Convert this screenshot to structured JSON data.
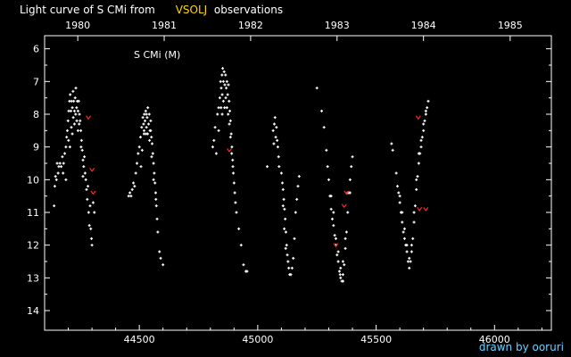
{
  "header": {
    "title_prefix": "Light curve of S CMi from",
    "title_source": "VSOLJ",
    "title_suffix": "observations"
  },
  "credit": "drawn by ooruri",
  "colors": {
    "background": "#000000",
    "axis": "#ffffff",
    "visual": "#ffffff",
    "photo": "#ff2a2a",
    "source": "#ffd700",
    "credit": "#6ad0ff"
  },
  "chart_data": {
    "type": "scatter",
    "title": "Light curve of S CMi from VSOLJ observations",
    "xlabel": "",
    "ylabel": "",
    "annotation": "S CMi (M)",
    "xlim": [
      44100,
      46240
    ],
    "ylim": [
      14.6,
      5.6
    ],
    "y_inverted": true,
    "grid": false,
    "x_ticks": [
      44500,
      45000,
      45500,
      46000
    ],
    "x_tick_labels": [
      "44500",
      "45000",
      "45500",
      "46000"
    ],
    "y_ticks": [
      6,
      7,
      8,
      9,
      10,
      11,
      12,
      13,
      14
    ],
    "y_tick_labels": [
      "6",
      "7",
      "8",
      "9",
      "10",
      "11",
      "12",
      "13",
      "14"
    ],
    "year_ticks": [
      44240,
      44605,
      44970,
      45335,
      45700,
      46066
    ],
    "year_tick_labels": [
      "1980",
      "1981",
      "1982",
      "1983",
      "1984",
      "1985"
    ],
    "series": [
      {
        "marker": "dot",
        "color": "#ffffff",
        "points": [
          [
            44140,
            10.8
          ],
          [
            44143,
            10.2
          ],
          [
            44146,
            9.9
          ],
          [
            44150,
            10.0
          ],
          [
            44153,
            9.5
          ],
          [
            44157,
            9.8
          ],
          [
            44160,
            9.6
          ],
          [
            44165,
            9.5
          ],
          [
            44170,
            9.6
          ],
          [
            44175,
            9.3
          ],
          [
            44180,
            9.5
          ],
          [
            44185,
            9.2
          ],
          [
            44190,
            9.0
          ],
          [
            44193,
            8.7
          ],
          [
            44196,
            8.5
          ],
          [
            44199,
            8.2
          ],
          [
            44202,
            7.9
          ],
          [
            44205,
            7.6
          ],
          [
            44208,
            7.4
          ],
          [
            44211,
            7.9
          ],
          [
            44214,
            7.6
          ],
          [
            44217,
            7.8
          ],
          [
            44220,
            7.3
          ],
          [
            44223,
            7.6
          ],
          [
            44226,
            7.9
          ],
          [
            44229,
            7.5
          ],
          [
            44232,
            7.2
          ],
          [
            44235,
            7.8
          ],
          [
            44238,
            7.6
          ],
          [
            44241,
            7.9
          ],
          [
            44244,
            7.6
          ],
          [
            44247,
            8.0
          ],
          [
            44250,
            8.2
          ],
          [
            44253,
            8.5
          ],
          [
            44256,
            8.8
          ],
          [
            44259,
            9.1
          ],
          [
            44262,
            9.4
          ],
          [
            44265,
            9.6
          ],
          [
            44268,
            9.3
          ],
          [
            44271,
            9.8
          ],
          [
            44274,
            10.0
          ],
          [
            44277,
            10.3
          ],
          [
            44280,
            10.6
          ],
          [
            44283,
            10.2
          ],
          [
            44286,
            11.0
          ],
          [
            44289,
            11.4
          ],
          [
            44292,
            10.8
          ],
          [
            44295,
            11.5
          ],
          [
            44298,
            11.8
          ],
          [
            44300,
            12.0
          ],
          [
            44305,
            10.7
          ],
          [
            44310,
            11.0
          ],
          [
            44213,
            8.4
          ],
          [
            44217,
            8.6
          ],
          [
            44221,
            8.1
          ],
          [
            44226,
            8.3
          ],
          [
            44231,
            8.0
          ],
          [
            44236,
            8.2
          ],
          [
            44241,
            8.5
          ],
          [
            44246,
            8.3
          ],
          [
            44201,
            8.8
          ],
          [
            44207,
            9.0
          ],
          [
            44254,
            9.0
          ],
          [
            44262,
            9.9
          ],
          [
            44190,
            10.0
          ],
          [
            44178,
            9.8
          ],
          [
            44455,
            10.5
          ],
          [
            44460,
            10.4
          ],
          [
            44465,
            10.5
          ],
          [
            44470,
            10.3
          ],
          [
            44475,
            10.1
          ],
          [
            44480,
            10.2
          ],
          [
            44485,
            9.8
          ],
          [
            44490,
            9.5
          ],
          [
            44495,
            9.2
          ],
          [
            44500,
            9.0
          ],
          [
            44505,
            8.7
          ],
          [
            44510,
            8.4
          ],
          [
            44515,
            8.1
          ],
          [
            44518,
            8.3
          ],
          [
            44521,
            8.0
          ],
          [
            44524,
            8.2
          ],
          [
            44527,
            7.9
          ],
          [
            44530,
            8.4
          ],
          [
            44533,
            8.1
          ],
          [
            44536,
            7.8
          ],
          [
            44539,
            8.3
          ],
          [
            44542,
            8.0
          ],
          [
            44545,
            8.5
          ],
          [
            44548,
            8.2
          ],
          [
            44551,
            8.7
          ],
          [
            44554,
            8.9
          ],
          [
            44557,
            9.2
          ],
          [
            44560,
            9.5
          ],
          [
            44563,
            9.8
          ],
          [
            44566,
            10.1
          ],
          [
            44569,
            10.4
          ],
          [
            44572,
            10.8
          ],
          [
            44575,
            11.2
          ],
          [
            44578,
            11.6
          ],
          [
            44585,
            12.2
          ],
          [
            44590,
            12.4
          ],
          [
            44600,
            12.6
          ],
          [
            44507,
            9.6
          ],
          [
            44512,
            9.1
          ],
          [
            44520,
            8.6
          ],
          [
            44528,
            8.6
          ],
          [
            44535,
            8.6
          ],
          [
            44543,
            8.8
          ],
          [
            44552,
            9.3
          ],
          [
            44560,
            10.0
          ],
          [
            44570,
            10.6
          ],
          [
            44548,
            8.5
          ],
          [
            44520,
            8.5
          ],
          [
            44530,
            8.0
          ],
          [
            44810,
            9.0
          ],
          [
            44815,
            8.8
          ],
          [
            44820,
            8.4
          ],
          [
            44825,
            9.2
          ],
          [
            44830,
            8.0
          ],
          [
            44835,
            7.8
          ],
          [
            44840,
            7.5
          ],
          [
            44843,
            7.0
          ],
          [
            44846,
            7.2
          ],
          [
            44849,
            6.8
          ],
          [
            44852,
            6.6
          ],
          [
            44855,
            7.0
          ],
          [
            44858,
            6.7
          ],
          [
            44861,
            7.1
          ],
          [
            44864,
            6.8
          ],
          [
            44867,
            7.2
          ],
          [
            44870,
            7.0
          ],
          [
            44873,
            7.4
          ],
          [
            44876,
            7.1
          ],
          [
            44879,
            7.6
          ],
          [
            44882,
            7.9
          ],
          [
            44885,
            8.2
          ],
          [
            44888,
            8.6
          ],
          [
            44891,
            9.0
          ],
          [
            44894,
            9.4
          ],
          [
            44897,
            9.8
          ],
          [
            44900,
            10.1
          ],
          [
            44903,
            10.4
          ],
          [
            44906,
            10.7
          ],
          [
            44910,
            11.0
          ],
          [
            44920,
            11.5
          ],
          [
            44930,
            12.0
          ],
          [
            44940,
            12.6
          ],
          [
            44950,
            12.8
          ],
          [
            44955,
            12.8
          ],
          [
            44850,
            7.4
          ],
          [
            44855,
            7.6
          ],
          [
            44860,
            7.8
          ],
          [
            44865,
            7.5
          ],
          [
            44870,
            7.8
          ],
          [
            44875,
            8.0
          ],
          [
            44880,
            8.3
          ],
          [
            44885,
            8.7
          ],
          [
            44890,
            9.2
          ],
          [
            44895,
            9.6
          ],
          [
            44845,
            7.8
          ],
          [
            44850,
            8.0
          ],
          [
            44835,
            8.5
          ],
          [
            45040,
            9.6
          ],
          [
            45065,
            8.5
          ],
          [
            45070,
            8.3
          ],
          [
            45073,
            8.1
          ],
          [
            45076,
            8.7
          ],
          [
            45079,
            8.4
          ],
          [
            45082,
            8.8
          ],
          [
            45085,
            9.0
          ],
          [
            45088,
            9.3
          ],
          [
            45090,
            9.6
          ],
          [
            45100,
            9.8
          ],
          [
            45104,
            10.1
          ],
          [
            45107,
            10.3
          ],
          [
            45110,
            10.6
          ],
          [
            45113,
            10.9
          ],
          [
            45116,
            11.2
          ],
          [
            45119,
            11.6
          ],
          [
            45122,
            12.0
          ],
          [
            45125,
            12.3
          ],
          [
            45128,
            12.5
          ],
          [
            45131,
            12.7
          ],
          [
            45135,
            12.9
          ],
          [
            45140,
            12.9
          ],
          [
            45145,
            12.7
          ],
          [
            45150,
            12.4
          ],
          [
            45155,
            11.8
          ],
          [
            45160,
            11.0
          ],
          [
            45165,
            10.6
          ],
          [
            45170,
            10.2
          ],
          [
            45175,
            9.9
          ],
          [
            45107,
            10.8
          ],
          [
            45112,
            11.5
          ],
          [
            45118,
            12.1
          ],
          [
            45068,
            8.9
          ],
          [
            45250,
            7.2
          ],
          [
            45270,
            7.9
          ],
          [
            45280,
            8.4
          ],
          [
            45290,
            9.1
          ],
          [
            45295,
            9.6
          ],
          [
            45300,
            10.0
          ],
          [
            45305,
            10.5
          ],
          [
            45310,
            10.9
          ],
          [
            45315,
            11.2
          ],
          [
            45320,
            11.4
          ],
          [
            45325,
            11.7
          ],
          [
            45330,
            12.0
          ],
          [
            45335,
            12.3
          ],
          [
            45340,
            12.5
          ],
          [
            45345,
            12.8
          ],
          [
            45350,
            13.0
          ],
          [
            45355,
            13.1
          ],
          [
            45360,
            12.9
          ],
          [
            45365,
            12.6
          ],
          [
            45370,
            12.1
          ],
          [
            45375,
            11.6
          ],
          [
            45380,
            11.0
          ],
          [
            45385,
            10.4
          ],
          [
            45390,
            10.0
          ],
          [
            45395,
            9.6
          ],
          [
            45400,
            9.3
          ],
          [
            45310,
            10.5
          ],
          [
            45320,
            11.0
          ],
          [
            45330,
            11.8
          ],
          [
            45340,
            12.2
          ],
          [
            45350,
            12.7
          ],
          [
            45360,
            12.5
          ],
          [
            45370,
            11.8
          ],
          [
            45380,
            10.4
          ],
          [
            45390,
            10.4
          ],
          [
            45360,
            13.1
          ],
          [
            45348,
            12.9
          ],
          [
            45565,
            8.9
          ],
          [
            45570,
            9.1
          ],
          [
            45585,
            9.8
          ],
          [
            45590,
            10.2
          ],
          [
            45595,
            10.4
          ],
          [
            45600,
            10.7
          ],
          [
            45605,
            11.0
          ],
          [
            45610,
            11.3
          ],
          [
            45615,
            11.6
          ],
          [
            45620,
            11.8
          ],
          [
            45625,
            12.0
          ],
          [
            45630,
            12.2
          ],
          [
            45635,
            12.5
          ],
          [
            45640,
            12.7
          ],
          [
            45645,
            12.5
          ],
          [
            45650,
            12.2
          ],
          [
            45655,
            11.8
          ],
          [
            45660,
            11.3
          ],
          [
            45665,
            10.8
          ],
          [
            45670,
            10.3
          ],
          [
            45675,
            9.9
          ],
          [
            45680,
            9.5
          ],
          [
            45685,
            9.2
          ],
          [
            45690,
            9.0
          ],
          [
            45695,
            8.7
          ],
          [
            45700,
            8.5
          ],
          [
            45705,
            8.2
          ],
          [
            45710,
            8.0
          ],
          [
            45715,
            7.8
          ],
          [
            45720,
            7.6
          ],
          [
            45600,
            10.5
          ],
          [
            45610,
            11.0
          ],
          [
            45620,
            11.5
          ],
          [
            45630,
            12.0
          ],
          [
            45640,
            12.4
          ],
          [
            45650,
            12.0
          ],
          [
            45660,
            11.0
          ],
          [
            45670,
            10.0
          ],
          [
            45680,
            9.2
          ],
          [
            45690,
            8.8
          ],
          [
            45700,
            8.3
          ],
          [
            45710,
            7.9
          ]
        ]
      },
      {
        "marker": "caret",
        "color": "#ff2a2a",
        "points": [
          [
            44285,
            8.1
          ],
          [
            44300,
            9.7
          ],
          [
            44305,
            10.4
          ],
          [
            44880,
            9.1
          ],
          [
            45330,
            12.0
          ],
          [
            45365,
            10.8
          ],
          [
            45375,
            10.4
          ],
          [
            45678,
            8.1
          ],
          [
            45683,
            10.9
          ],
          [
            45710,
            10.9
          ]
        ]
      }
    ]
  }
}
